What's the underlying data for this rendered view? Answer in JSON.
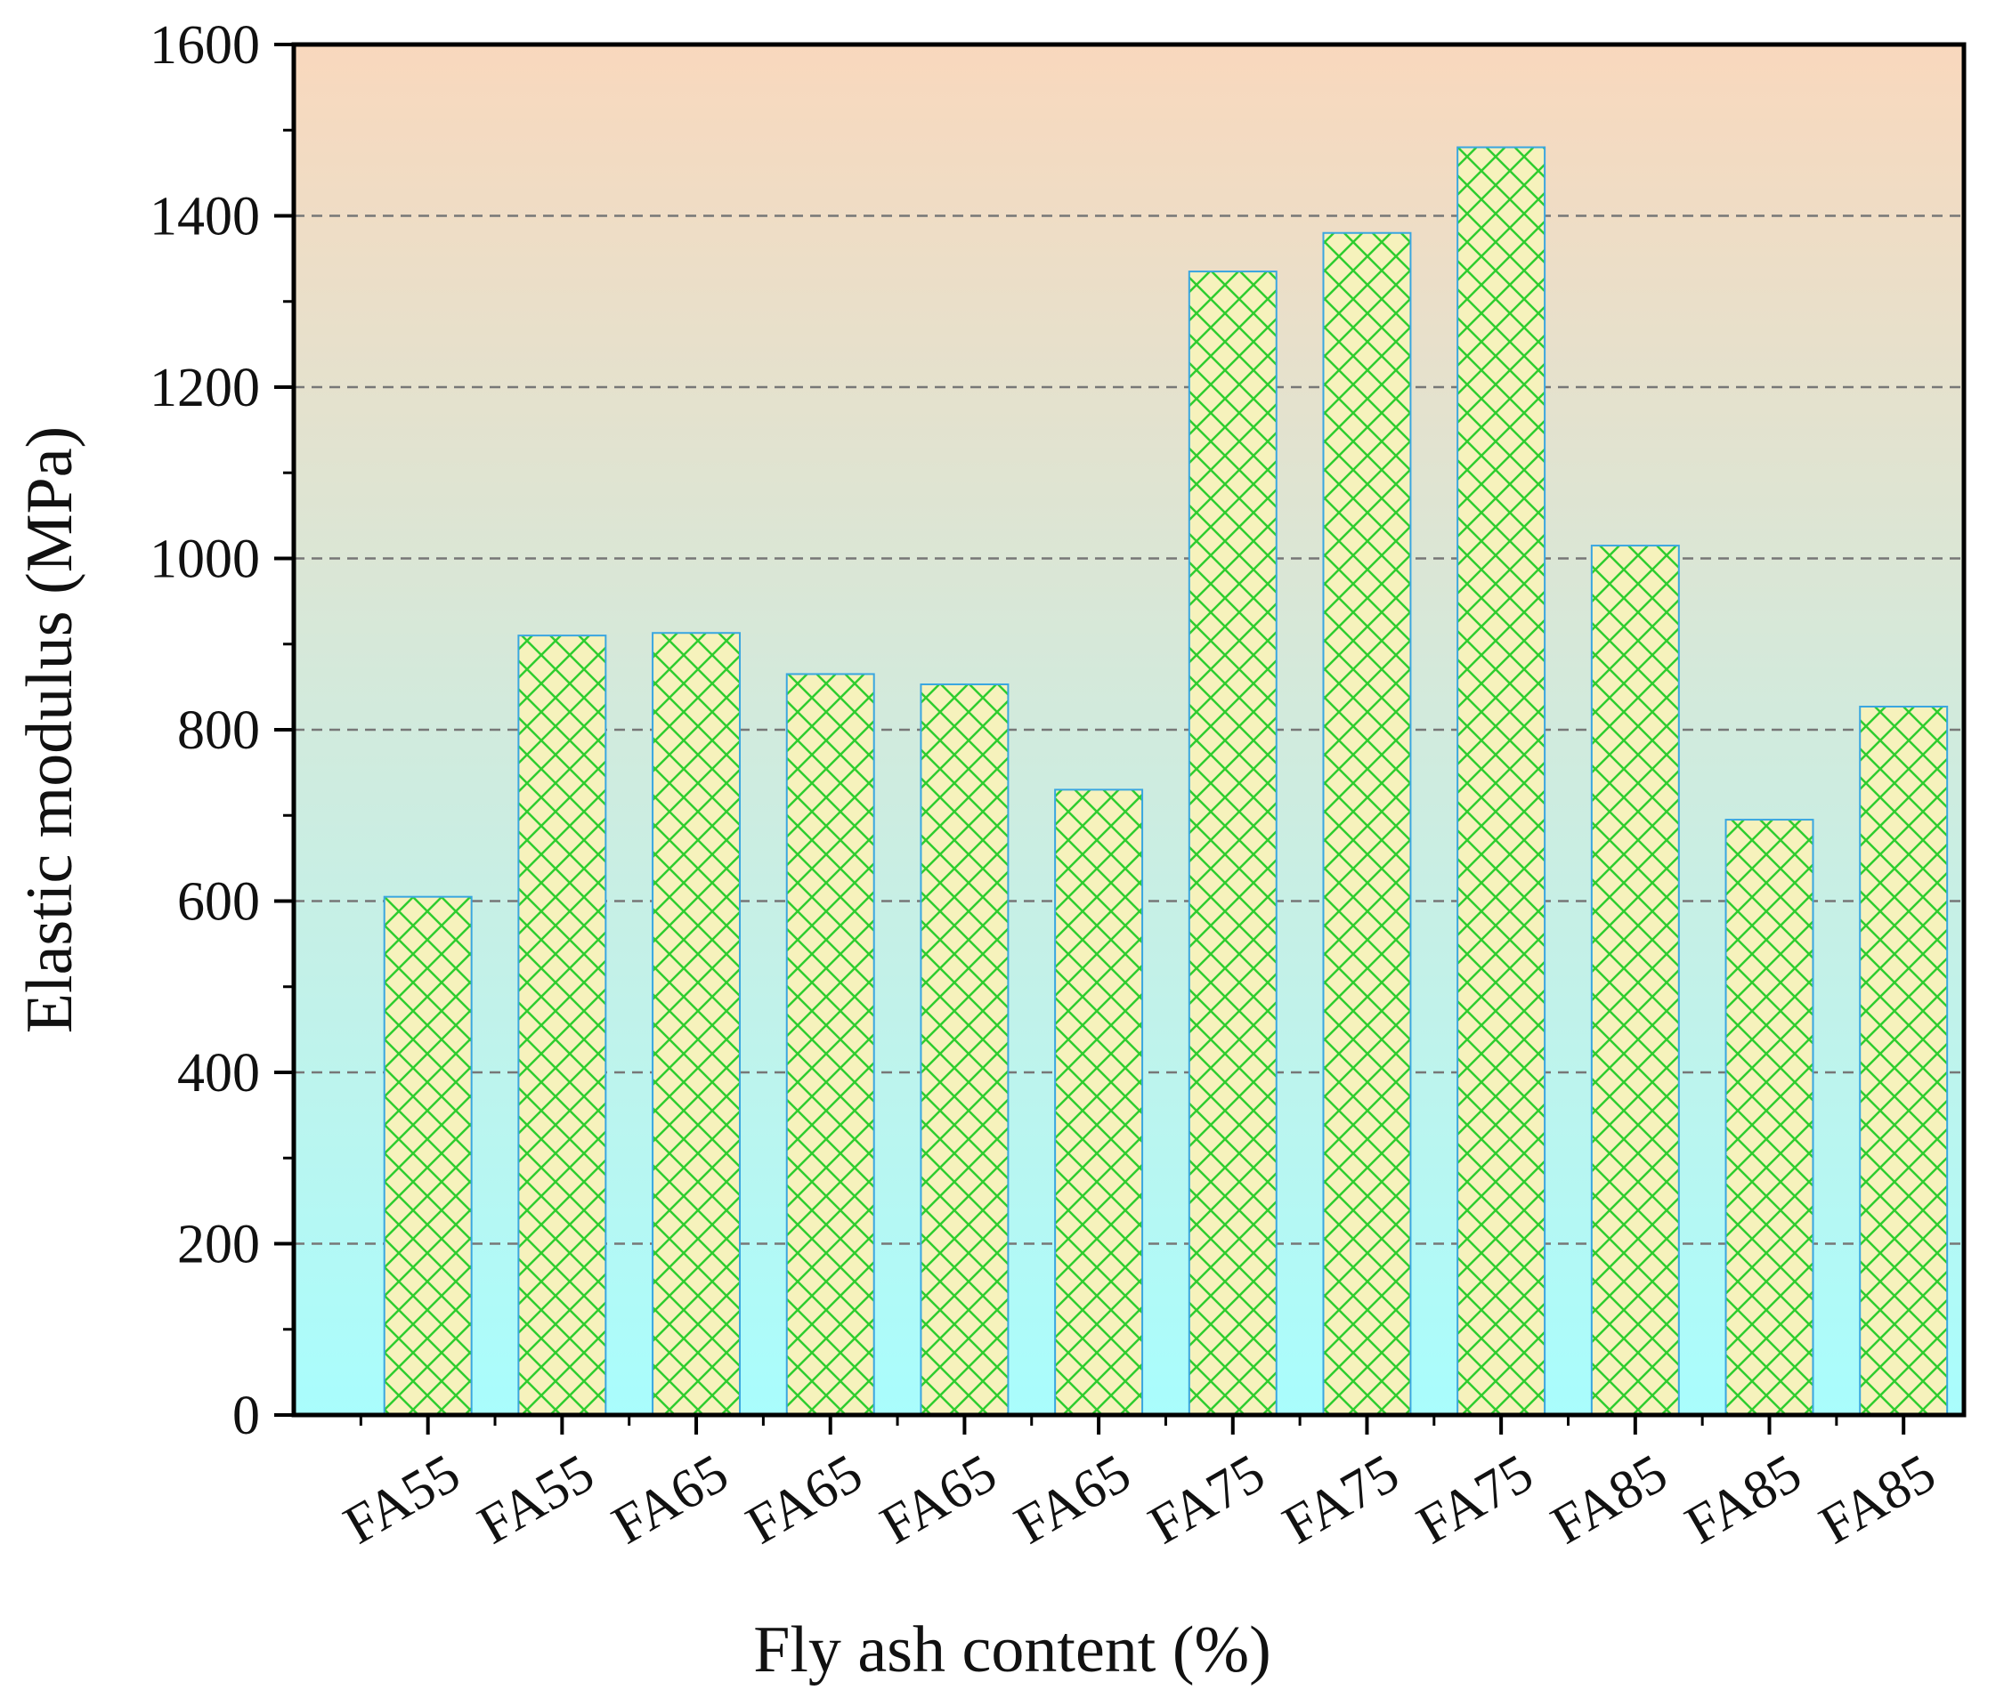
{
  "chart_data": {
    "type": "bar",
    "title": "",
    "xlabel": "Fly ash content (%)",
    "ylabel": "Elastic modulus (MPa)",
    "categories": [
      "FA55",
      "FA55",
      "FA65",
      "FA65",
      "FA65",
      "FA65",
      "FA75",
      "FA75",
      "FA75",
      "FA85",
      "FA85",
      "FA85"
    ],
    "values": [
      605,
      910,
      913,
      865,
      853,
      730,
      1335,
      1380,
      1480,
      1015,
      695,
      827
    ],
    "ylim": [
      0,
      1600
    ],
    "yticks": [
      0,
      200,
      400,
      600,
      800,
      1000,
      1200,
      1400,
      1600
    ],
    "grid": "horizontal dashed",
    "legend": "none",
    "colors": {
      "bar_fill": "#f6f2bc",
      "bar_hatch": "#2fcd2f",
      "bar_edge": "#3aa6e0",
      "background_top": "#f9d8bd",
      "background_bottom": "#a9fdfd",
      "gridline": "#777777",
      "axis": "#000000"
    }
  }
}
